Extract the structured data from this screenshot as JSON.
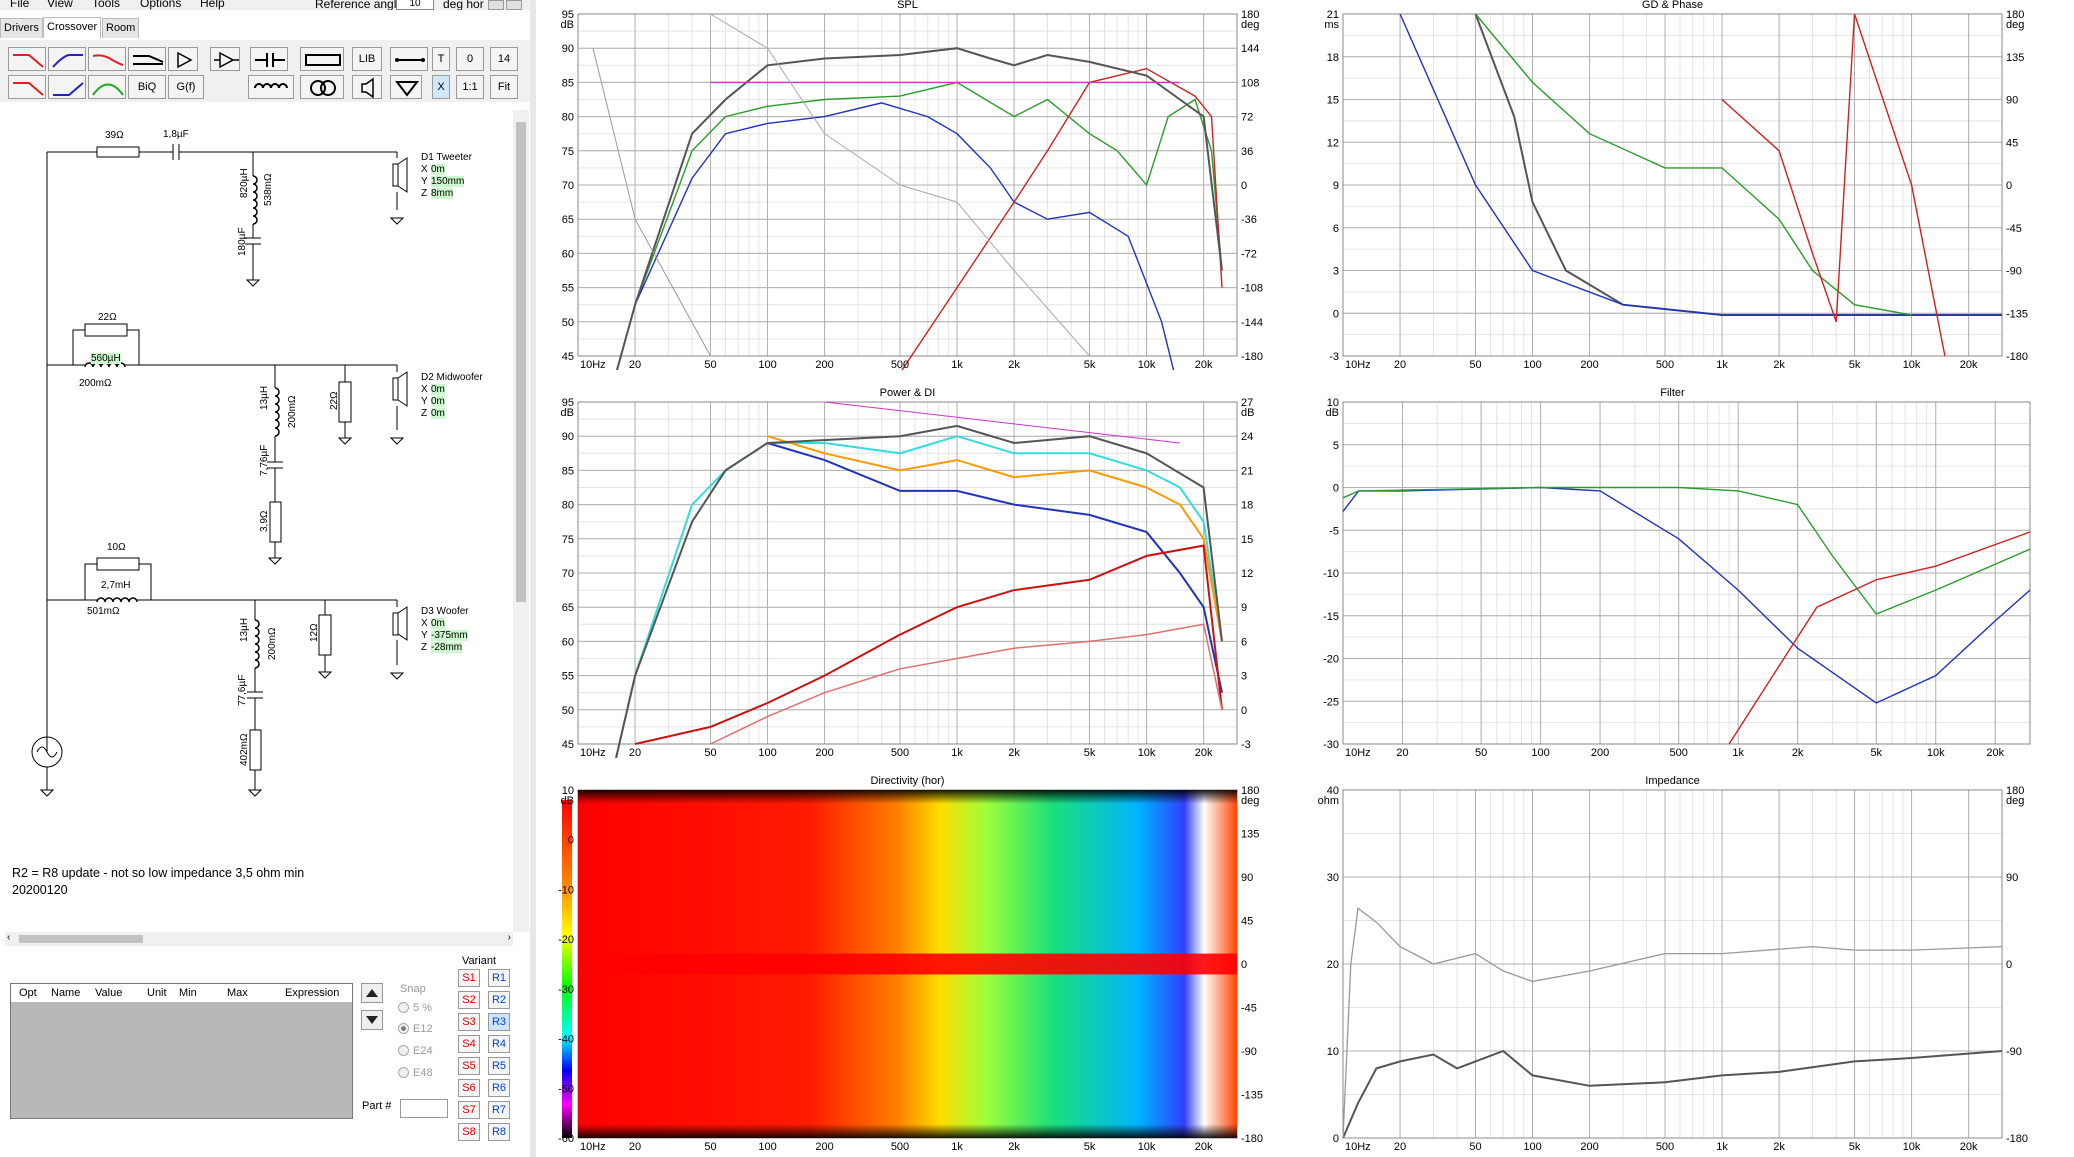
{
  "menu": [
    "File",
    "View",
    "Tools",
    "Options",
    "Help"
  ],
  "reference_angle": {
    "label": "Reference angle",
    "value": "10",
    "unit": "deg hor"
  },
  "tabs": [
    "Drivers",
    "Crossover",
    "Room"
  ],
  "toolbar": {
    "lib": "LIB",
    "t": "T",
    "zero": "0",
    "fourteen": "14",
    "biq": "BiQ",
    "gf": "G(f)",
    "x": "X",
    "one_one": "1:1",
    "fit": "Fit"
  },
  "schematic": {
    "r1": "39Ω",
    "c1": "1,8µF",
    "l1": "820µH",
    "l1r": "538mΩ",
    "c2": "180µF",
    "tweeter": {
      "name": "D1 Tweeter",
      "x": "0m",
      "y": "150mm",
      "z": "8mm"
    },
    "r2": "22Ω",
    "l2": "560µH",
    "l2r": "200mΩ",
    "l3": "13µH",
    "l3r": "200mΩ",
    "c3": "7,76µF",
    "r3": "3,9Ω",
    "r4": "22Ω",
    "midwoofer": {
      "name": "D2 Midwoofer",
      "x": "0m",
      "y": "0m",
      "z": "0m"
    },
    "r5": "10Ω",
    "l4": "2,7mH",
    "l4r": "501mΩ",
    "l5": "13µH",
    "l5r": "200mΩ",
    "r6": "12Ω",
    "c4": "77,6µF",
    "r7": "402mΩ",
    "woofer": {
      "name": "D3 Woofer",
      "x": "0m",
      "y": "-375mm",
      "z": "-28mm"
    },
    "labels": {
      "x": "X",
      "y": "Y",
      "z": "Z"
    }
  },
  "note": [
    "R2 = R8 update - not so low impedance 3,5 ohm min",
    "20200120"
  ],
  "opt_table": {
    "headers": [
      "Opt",
      "Name",
      "Value",
      "Unit",
      "Min",
      "Max",
      "Expression"
    ]
  },
  "snap": {
    "label": "Snap",
    "options": [
      "5 %",
      "E12",
      "E24",
      "E48"
    ],
    "selected": "E12"
  },
  "variant": {
    "label": "Variant",
    "s": [
      "S1",
      "S2",
      "S3",
      "S4",
      "S5",
      "S6",
      "S7",
      "S8"
    ],
    "r": [
      "R1",
      "R2",
      "R3",
      "R4",
      "R5",
      "R6",
      "R7",
      "R8"
    ],
    "selected": "R3"
  },
  "part_label": "Part #",
  "x_ticks": [
    "10Hz",
    "20",
    "50",
    "100",
    "200",
    "500",
    "1k",
    "2k",
    "5k",
    "10k",
    "20k"
  ],
  "graphs": {
    "spl": {
      "title": "SPL",
      "left_unit": "dB",
      "right_unit": "deg",
      "left_ticks": [
        "95",
        "90",
        "85",
        "80",
        "75",
        "70",
        "65",
        "60",
        "55",
        "50",
        "45"
      ],
      "right_ticks": [
        "180",
        "144",
        "108",
        "72",
        "36",
        "0",
        "-36",
        "-72",
        "-108",
        "-144",
        "-180"
      ]
    },
    "gd": {
      "title": "GD & Phase",
      "left_unit": "ms",
      "right_unit": "deg",
      "left_ticks": [
        "21",
        "18",
        "15",
        "12",
        "9",
        "6",
        "3",
        "0",
        "-3"
      ],
      "right_ticks": [
        "180",
        "135",
        "90",
        "45",
        "0",
        "-45",
        "-90",
        "-135",
        "-180"
      ]
    },
    "power": {
      "title": "Power & DI",
      "left_unit": "dB",
      "right_unit": "dB",
      "left_ticks": [
        "95",
        "90",
        "85",
        "80",
        "75",
        "70",
        "65",
        "60",
        "55",
        "50",
        "45"
      ],
      "right_ticks": [
        "27",
        "24",
        "21",
        "18",
        "15",
        "12",
        "9",
        "6",
        "3",
        "0",
        "-3"
      ]
    },
    "filter": {
      "title": "Filter",
      "left_unit": "dB",
      "left_ticks": [
        "10",
        "5",
        "0",
        "-5",
        "-10",
        "-15",
        "-20",
        "-25",
        "-30"
      ]
    },
    "directivity": {
      "title": "Directivity (hor)",
      "left_unit": "dB",
      "right_unit": "deg",
      "left_ticks": [
        "10",
        "0",
        "-10",
        "-20",
        "-30",
        "-40",
        "-50",
        "-60"
      ],
      "right_ticks": [
        "180",
        "135",
        "90",
        "45",
        "0",
        "-45",
        "-90",
        "-135",
        "-180"
      ]
    },
    "impedance": {
      "title": "Impedance",
      "left_unit": "ohm",
      "right_unit": "deg",
      "left_ticks": [
        "40",
        "30",
        "20",
        "10",
        "0"
      ],
      "right_ticks": [
        "180",
        "90",
        "0",
        "-90",
        "-180"
      ]
    }
  },
  "colors": {
    "tweeter": "#2b9c2b",
    "mid": "#2233bb",
    "woofer": "#cc2222",
    "total": "#555555",
    "target": "#cc33cc",
    "cyan": "#33dddd",
    "orange": "#ff9900"
  }
}
